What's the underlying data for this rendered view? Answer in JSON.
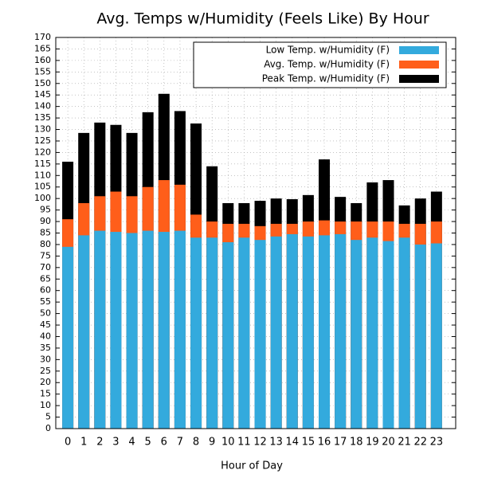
{
  "chart_data": {
    "type": "bar",
    "title": "Avg. Temps w/Humidity (Feels Like) By Hour",
    "x_label": "Hour of Day",
    "x": [
      0,
      1,
      2,
      3,
      4,
      5,
      6,
      7,
      8,
      9,
      10,
      11,
      12,
      13,
      14,
      15,
      16,
      17,
      18,
      19,
      20,
      21,
      22,
      23
    ],
    "xlim": [
      -0.75,
      24.2
    ],
    "series": [
      {
        "name": "Peak Temp. w/Humidity (F)",
        "color": "#000000",
        "values": [
          116,
          128.5,
          133,
          132,
          128.5,
          137.5,
          145.5,
          138,
          132.6,
          114,
          98,
          98,
          99,
          100,
          99.7,
          101.5,
          117,
          100.7,
          98,
          107,
          108,
          97,
          100,
          103
        ]
      },
      {
        "name": "Avg. Temp. w/Humidity (F)",
        "color": "#ff5e1a",
        "values": [
          91,
          98,
          101,
          103,
          101,
          105,
          108,
          106,
          93,
          90,
          89,
          89,
          88,
          89,
          89,
          90,
          90.5,
          90,
          90,
          90,
          90,
          89,
          89,
          90
        ]
      },
      {
        "name": "Low Temp. w/Humidity (F)",
        "color": "#33aadd",
        "values": [
          79,
          84,
          86,
          85.5,
          85,
          86,
          85.5,
          86,
          83,
          83,
          81,
          83,
          82,
          83.5,
          84.5,
          83.5,
          84,
          84.5,
          82,
          83,
          81.5,
          83,
          80,
          80.5
        ]
      }
    ],
    "ylim": [
      0,
      170
    ],
    "yticks": [
      0,
      5,
      10,
      15,
      20,
      25,
      30,
      35,
      40,
      45,
      50,
      55,
      60,
      65,
      70,
      75,
      80,
      85,
      90,
      95,
      100,
      105,
      110,
      115,
      120,
      125,
      130,
      135,
      140,
      145,
      150,
      155,
      160,
      165,
      170
    ],
    "grid": true,
    "legend": "top-right"
  }
}
